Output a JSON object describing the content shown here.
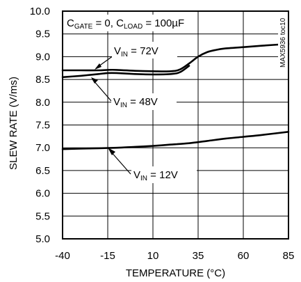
{
  "chart_data": {
    "type": "line",
    "xlabel": "TEMPERATURE (°C)",
    "ylabel": "SLEW RATE (V/ms)",
    "xlim": [
      -40,
      85
    ],
    "ylim": [
      5.0,
      10.0
    ],
    "xticks": [
      "-40",
      "-15",
      "10",
      "35",
      "60",
      "85"
    ],
    "yticks": [
      "5.0",
      "5.5",
      "6.0",
      "6.5",
      "7.0",
      "7.5",
      "8.0",
      "8.5",
      "9.0",
      "9.5",
      "10.0"
    ],
    "grid": true,
    "condition": {
      "c_gate": "C",
      "c_gate_sub": "GATE",
      "c_gate_rest": " = 0, ",
      "c_load": "C",
      "c_load_sub": "LOAD",
      "c_load_rest": " = 100µF"
    },
    "watermark": "MAX5936 toc10",
    "series": [
      {
        "name": "VIN = 72V",
        "label_main": "V",
        "label_sub": "IN",
        "label_rest": " = 72V",
        "x": [
          -40,
          -30,
          -20,
          -15,
          -10,
          0,
          10,
          20,
          25,
          30,
          35,
          40,
          45,
          50,
          60,
          70,
          85
        ],
        "y": [
          8.7,
          8.7,
          8.7,
          8.71,
          8.71,
          8.69,
          8.68,
          8.68,
          8.72,
          8.85,
          9.0,
          9.1,
          9.15,
          9.18,
          9.21,
          9.24,
          9.28
        ]
      },
      {
        "name": "VIN = 48V",
        "label_main": "V",
        "label_sub": "IN",
        "label_rest": " = 48V",
        "x": [
          -40,
          -30,
          -20,
          -15,
          -10,
          0,
          10,
          20,
          25,
          30
        ],
        "y": [
          8.55,
          8.58,
          8.62,
          8.64,
          8.64,
          8.62,
          8.61,
          8.62,
          8.66,
          8.8
        ]
      },
      {
        "name": "VIN = 12V",
        "label_main": "V",
        "label_sub": "IN",
        "label_rest": " = 12V",
        "x": [
          -40,
          -30,
          -20,
          -10,
          0,
          10,
          20,
          30,
          40,
          50,
          60,
          70,
          85
        ],
        "y": [
          6.97,
          6.98,
          6.99,
          7.0,
          7.02,
          7.04,
          7.07,
          7.1,
          7.15,
          7.2,
          7.24,
          7.28,
          7.35
        ]
      }
    ]
  }
}
